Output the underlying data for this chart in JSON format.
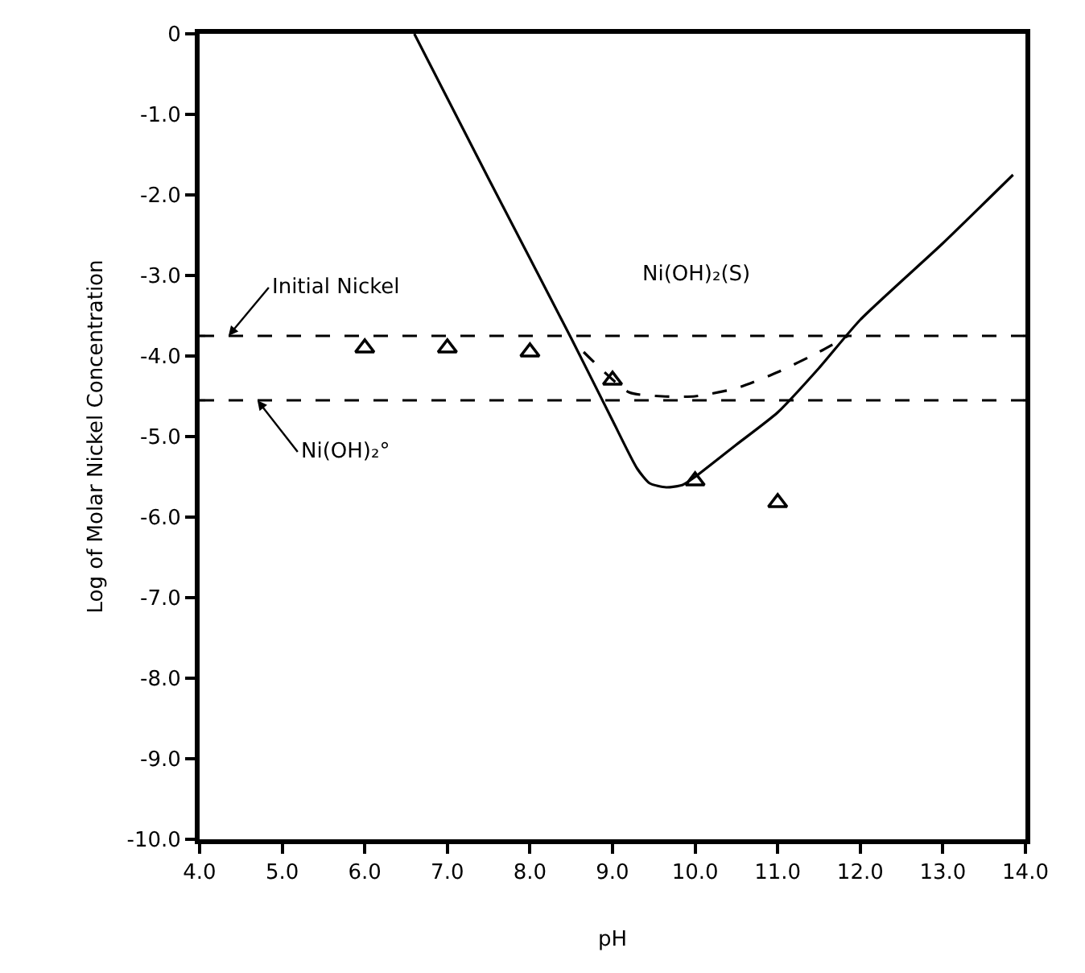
{
  "chart_data": {
    "type": "line",
    "xlabel": "pH",
    "ylabel": "Log of Molar Nickel Concentration",
    "xlim": [
      4.0,
      14.0
    ],
    "ylim": [
      -10.0,
      0
    ],
    "xticks": [
      {
        "value": 4,
        "label": "4.0"
      },
      {
        "value": 5,
        "label": "5.0"
      },
      {
        "value": 6,
        "label": "6.0"
      },
      {
        "value": 7,
        "label": "7.0"
      },
      {
        "value": 8,
        "label": "8.0"
      },
      {
        "value": 9,
        "label": "9.0"
      },
      {
        "value": 10,
        "label": "10.0"
      },
      {
        "value": 11,
        "label": "11.0"
      },
      {
        "value": 12,
        "label": "12.0"
      },
      {
        "value": 13,
        "label": "13.0"
      },
      {
        "value": 14,
        "label": "14.0"
      }
    ],
    "yticks": [
      0,
      {
        "value": -1,
        "label": "-1.0"
      },
      {
        "value": -2,
        "label": "-2.0"
      },
      {
        "value": -3,
        "label": "-3.0"
      },
      {
        "value": -4,
        "label": "-4.0"
      },
      {
        "value": -5,
        "label": "-5.0"
      },
      {
        "value": -6,
        "label": "-6.0"
      },
      {
        "value": -7,
        "label": "-7.0"
      },
      {
        "value": -8,
        "label": "-8.0"
      },
      {
        "value": -9,
        "label": "-9.0"
      },
      {
        "value": -10,
        "label": "-10.0"
      }
    ],
    "series": [
      {
        "color": "#000000",
        "line_style": "solid",
        "x": [
          6.6,
          7.5,
          8.5,
          9.0,
          9.3,
          9.45,
          9.65,
          9.85,
          10.0,
          10.5,
          11.0,
          11.5,
          12.0,
          13.0,
          13.85
        ],
        "values": [
          0,
          -1.8,
          -3.78,
          -4.8,
          -5.4,
          -5.58,
          -5.63,
          -5.6,
          -5.5,
          -5.1,
          -4.7,
          -4.15,
          -3.55,
          -2.6,
          -1.75
        ]
      },
      {
        "color": "#000000",
        "line_style": "dashed",
        "x": [
          8.65,
          9.2,
          9.6,
          10.0,
          10.5,
          11.0,
          11.5,
          11.85
        ],
        "values": [
          -3.95,
          -4.45,
          -4.5,
          -4.5,
          -4.4,
          -4.2,
          -3.95,
          -3.75
        ]
      },
      {
        "type": "scatter",
        "color": "#000000",
        "marker": "triangle",
        "x": [
          6.0,
          7.0,
          8.0,
          9.0,
          10.0,
          11.0
        ],
        "values": [
          -3.9,
          -3.9,
          -3.95,
          -4.3,
          -5.55,
          -5.82
        ]
      }
    ],
    "ref_lines": [
      {
        "axis": "y",
        "value": -3.75,
        "label": "Initial Nickel",
        "color": "#000000",
        "line_style": "dashed"
      },
      {
        "axis": "y",
        "value": -4.55,
        "label": "Ni(OH)₂°",
        "color": "#000000",
        "line_style": "dashed"
      }
    ],
    "annotations": [
      "Ni(OH)₂(S)"
    ]
  }
}
